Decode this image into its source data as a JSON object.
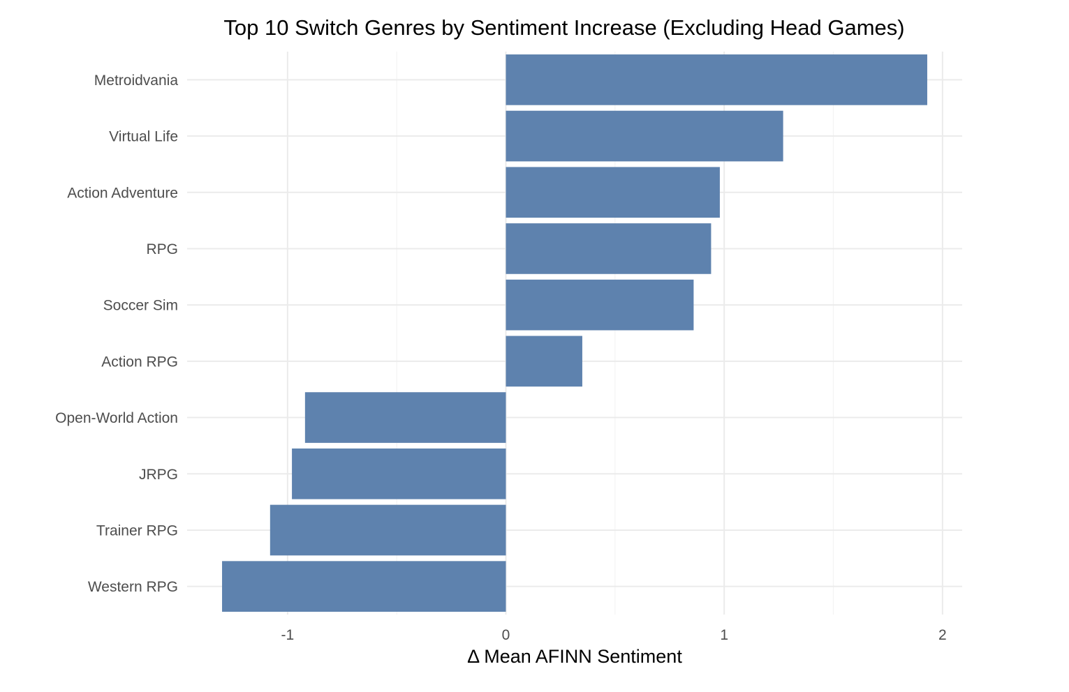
{
  "chart_data": {
    "type": "bar",
    "orientation": "horizontal",
    "title": "Top 10 Switch Genres by Sentiment Increase (Excluding Head Games)",
    "xlabel": "Δ Mean AFINN Sentiment",
    "ylabel": "",
    "categories": [
      "Metroidvania",
      "Virtual Life",
      "Action Adventure",
      "RPG",
      "Soccer Sim",
      "Action RPG",
      "Open-World Action",
      "JRPG",
      "Trainer RPG",
      "Western RPG"
    ],
    "values": [
      1.93,
      1.27,
      0.98,
      0.94,
      0.86,
      0.35,
      -0.92,
      -0.98,
      -1.08,
      -1.3
    ],
    "xticks": [
      -1,
      0,
      1,
      2
    ],
    "xtick_labels": [
      "-1",
      "0",
      "1",
      "2"
    ],
    "xlim": [
      -1.46,
      2.09
    ],
    "grid": true,
    "legend": "none",
    "bar_color": "#5e82ae"
  }
}
